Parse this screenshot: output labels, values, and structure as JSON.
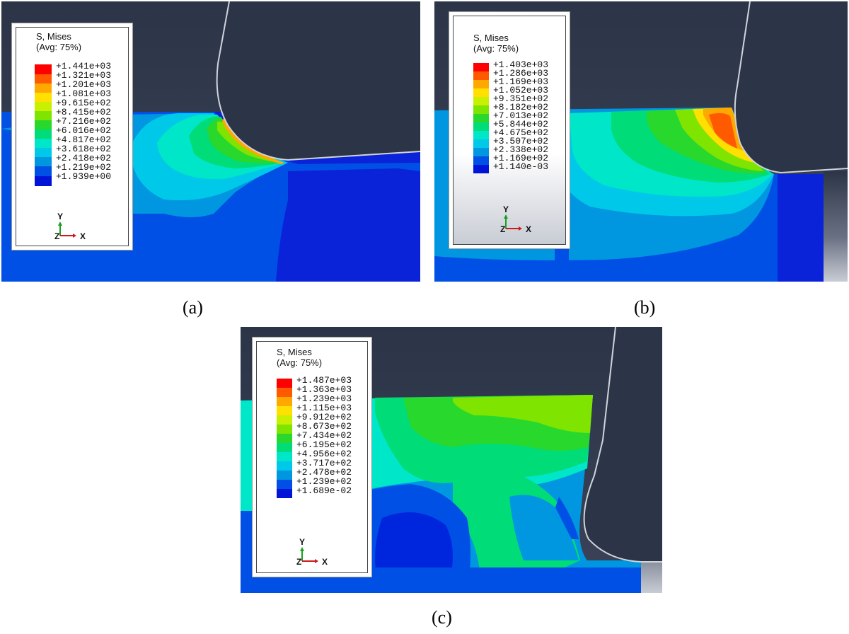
{
  "panels": [
    {
      "id": "a",
      "caption": "(a)",
      "legend": {
        "title": "S, Mises",
        "subtitle": "(Avg: 75%)",
        "values": [
          "+1.441e+03",
          "+1.321e+03",
          "+1.201e+03",
          "+1.081e+03",
          "+9.615e+02",
          "+8.415e+02",
          "+7.216e+02",
          "+6.016e+02",
          "+4.817e+02",
          "+3.618e+02",
          "+2.418e+02",
          "+1.219e+02",
          "+1.939e+00"
        ]
      },
      "axes": {
        "y": "Y",
        "z": "Z",
        "x": "X"
      }
    },
    {
      "id": "b",
      "caption": "(b)",
      "legend": {
        "title": "S, Mises",
        "subtitle": "(Avg: 75%)",
        "values": [
          "+1.403e+03",
          "+1.286e+03",
          "+1.169e+03",
          "+1.052e+03",
          "+9.351e+02",
          "+8.182e+02",
          "+7.013e+02",
          "+5.844e+02",
          "+4.675e+02",
          "+3.507e+02",
          "+2.338e+02",
          "+1.169e+02",
          "+1.140e-03"
        ]
      },
      "axes": {
        "y": "Y",
        "z": "Z",
        "x": "X"
      }
    },
    {
      "id": "c",
      "caption": "(c)",
      "legend": {
        "title": "S, Mises",
        "subtitle": "(Avg: 75%)",
        "values": [
          "+1.487e+03",
          "+1.363e+03",
          "+1.239e+03",
          "+1.115e+03",
          "+9.912e+02",
          "+8.673e+02",
          "+7.434e+02",
          "+6.195e+02",
          "+4.956e+02",
          "+3.717e+02",
          "+2.478e+02",
          "+1.239e+02",
          "+1.689e-02"
        ]
      },
      "axes": {
        "y": "Y",
        "z": "Z",
        "x": "X"
      }
    }
  ],
  "colors": {
    "background": "#2b3446",
    "contour": [
      "#ff0000",
      "#ff5a00",
      "#ffa800",
      "#ffe000",
      "#c8f000",
      "#7ee400",
      "#28d82c",
      "#00dc78",
      "#00e6c8",
      "#00c8e8",
      "#0096e0",
      "#0050e6",
      "#0014d8"
    ]
  }
}
